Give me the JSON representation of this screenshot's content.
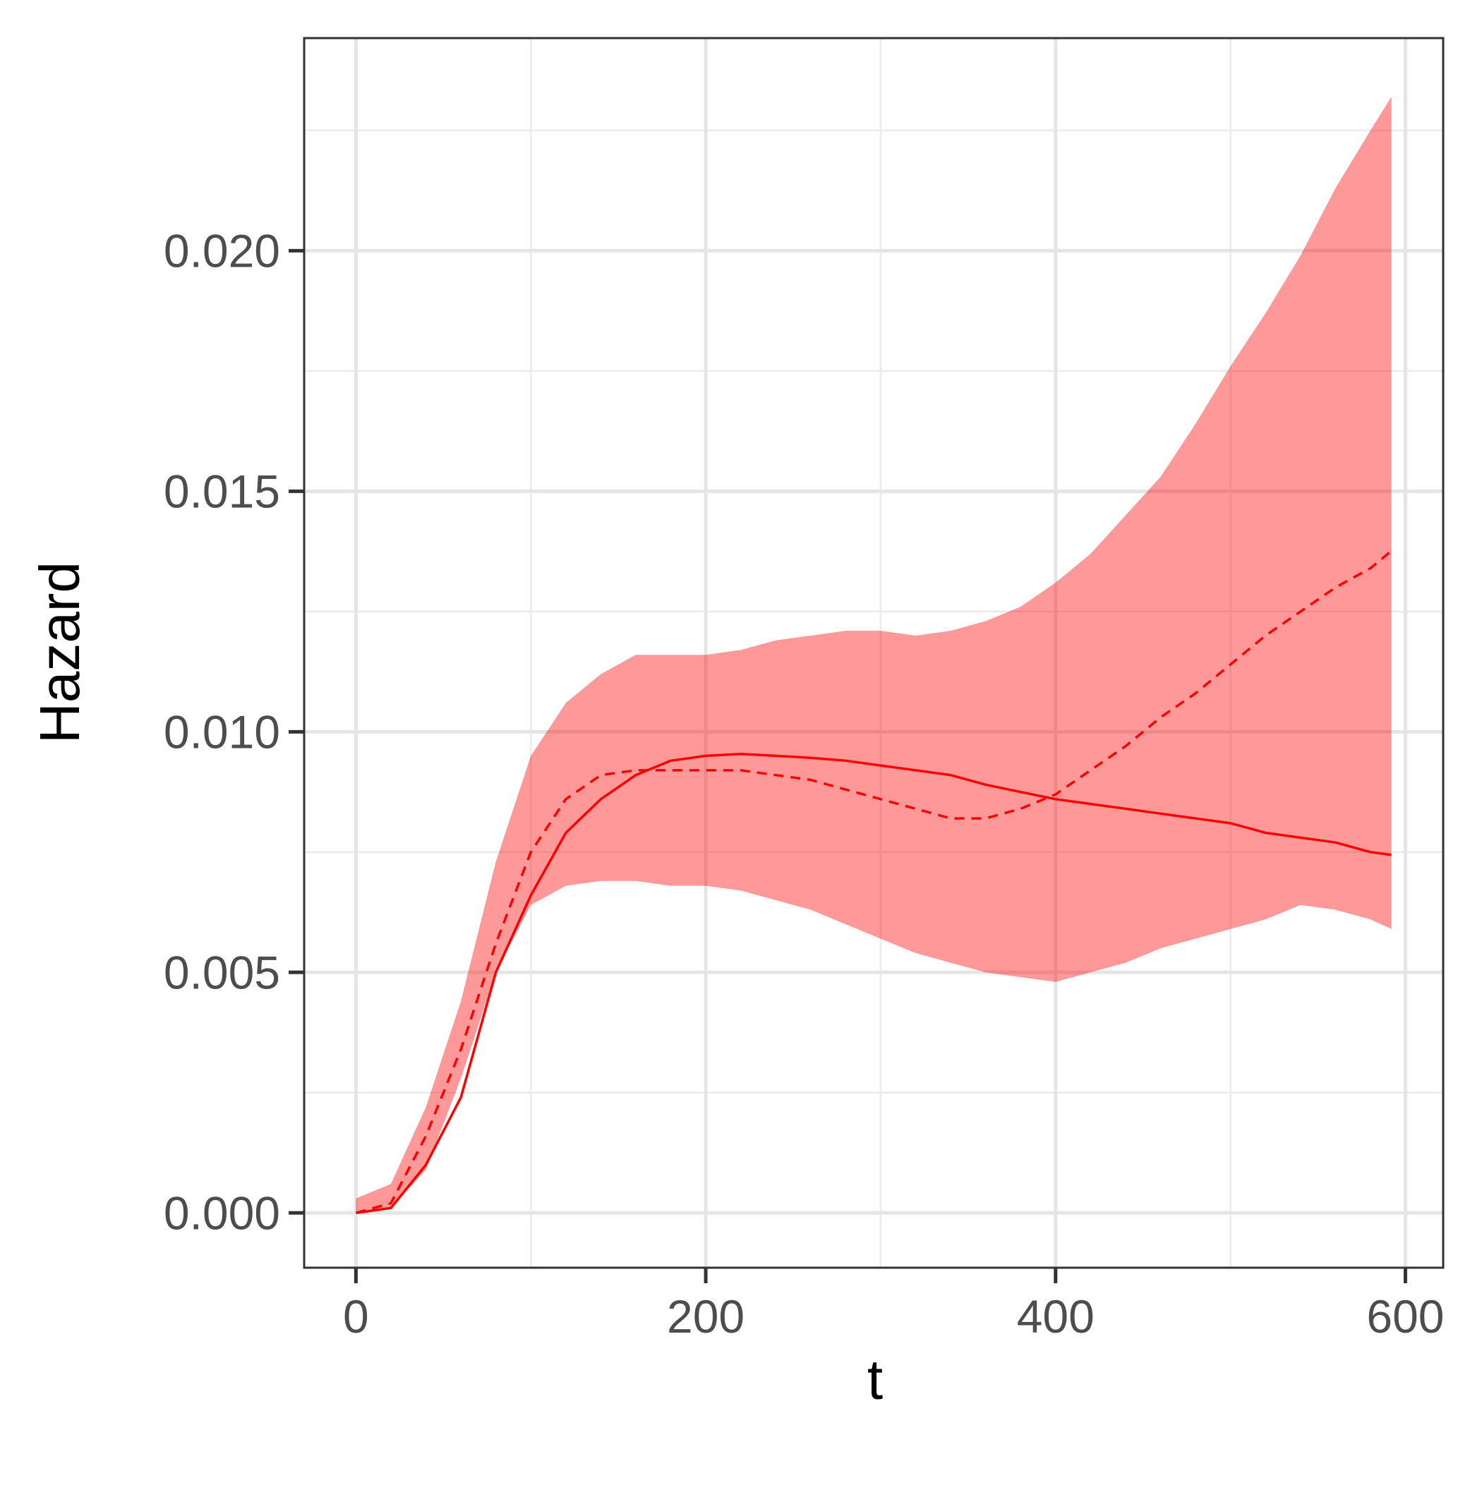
{
  "chart_data": {
    "type": "line",
    "x_label": "t",
    "y_label": "Hazard",
    "x": [
      0,
      20,
      40,
      60,
      80,
      100,
      120,
      140,
      160,
      180,
      200,
      220,
      240,
      260,
      280,
      300,
      320,
      340,
      360,
      380,
      400,
      420,
      440,
      460,
      480,
      500,
      520,
      540,
      560,
      580,
      592
    ],
    "lines": [
      {
        "color": "#ff0000",
        "dashed": false,
        "values": [
          0,
          0.0001,
          0.001,
          0.0024,
          0.005,
          0.0066,
          0.0079,
          0.0086,
          0.0091,
          0.0094,
          0.0095,
          0.00954,
          0.0095,
          0.00946,
          0.0094,
          0.0093,
          0.0092,
          0.0091,
          0.0089,
          0.00875,
          0.0086,
          0.0085,
          0.0084,
          0.0083,
          0.0082,
          0.0081,
          0.0079,
          0.0078,
          0.0077,
          0.0075,
          0.00744
        ]
      },
      {
        "color": "#ff0000",
        "dashed": true,
        "values": [
          0,
          0.0002,
          0.0016,
          0.0034,
          0.0056,
          0.0075,
          0.0086,
          0.0091,
          0.0092,
          0.0092,
          0.0092,
          0.0092,
          0.0091,
          0.009,
          0.0088,
          0.0086,
          0.0084,
          0.0082,
          0.0082,
          0.0084,
          0.0087,
          0.0092,
          0.0097,
          0.0103,
          0.0108,
          0.0114,
          0.012,
          0.0125,
          0.013,
          0.0134,
          0.01376
        ]
      }
    ],
    "band": {
      "color": "#ff0000",
      "opacity": 0.4,
      "upper": [
        0.0003,
        0.0006,
        0.0022,
        0.0044,
        0.0073,
        0.0095,
        0.0106,
        0.0112,
        0.0116,
        0.0116,
        0.0116,
        0.0117,
        0.0119,
        0.012,
        0.0121,
        0.0121,
        0.012,
        0.0121,
        0.0123,
        0.0126,
        0.0131,
        0.0137,
        0.0145,
        0.0153,
        0.0164,
        0.0176,
        0.0187,
        0.0199,
        0.0213,
        0.0225,
        0.0232
      ],
      "lower": [
        0,
        0.0001,
        0.0009,
        0.0028,
        0.005,
        0.0064,
        0.0068,
        0.0069,
        0.0069,
        0.0068,
        0.0068,
        0.0067,
        0.0065,
        0.0063,
        0.006,
        0.0057,
        0.0054,
        0.0052,
        0.005,
        0.0049,
        0.0048,
        0.005,
        0.0052,
        0.0055,
        0.0057,
        0.0059,
        0.0061,
        0.0064,
        0.0063,
        0.0061,
        0.0059
      ]
    },
    "xlim": [
      -29.6,
      621.6
    ],
    "ylim": [
      -0.00114,
      0.02442
    ],
    "xticks": [
      0,
      200,
      400,
      600
    ],
    "yticks": [
      {
        "value": 0,
        "label": "0.000"
      },
      {
        "value": 0.005,
        "label": "0.005"
      },
      {
        "value": 0.01,
        "label": "0.010"
      },
      {
        "value": 0.015,
        "label": "0.015"
      },
      {
        "value": 0.02,
        "label": "0.020"
      }
    ],
    "grid": true,
    "minor_grid": true
  }
}
